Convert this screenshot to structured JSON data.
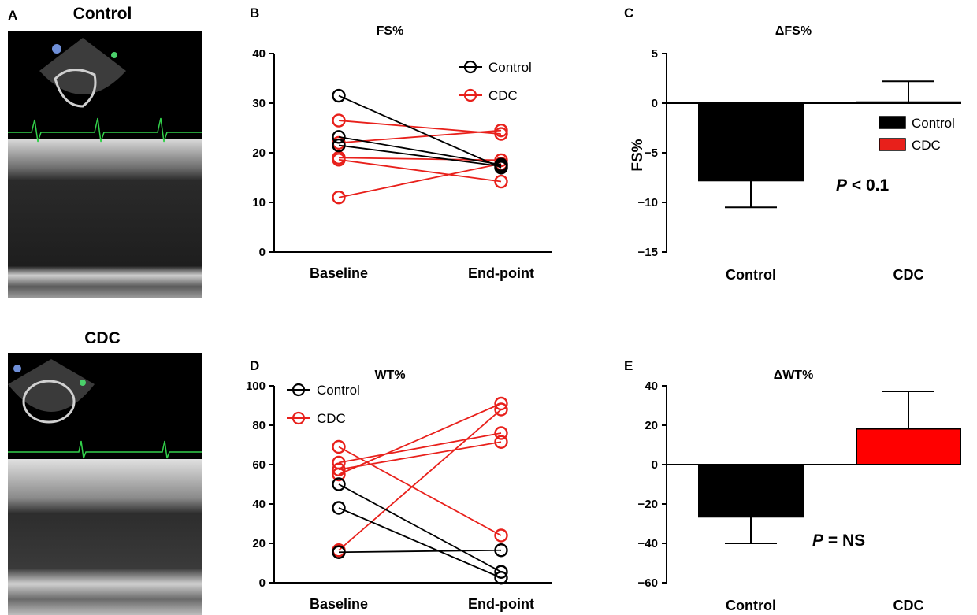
{
  "echo_panels": [
    {
      "letter": "A",
      "title": "Control"
    },
    {
      "letter": "",
      "title": "CDC"
    }
  ],
  "chart_data": [
    {
      "panel": "B",
      "type": "line",
      "title": "FS%",
      "xlabel": "",
      "ylabel": "",
      "categories": [
        "Baseline",
        "End-point"
      ],
      "ylim": [
        0,
        40
      ],
      "yticks": [
        0,
        10,
        20,
        30,
        40
      ],
      "legend": {
        "placement": "top-right",
        "entries": [
          "Control",
          "CDC"
        ]
      },
      "colors": {
        "Control": "#000000",
        "CDC": "#e8201b"
      },
      "series": [
        {
          "group": "Control",
          "values": [
            31.5,
            17
          ]
        },
        {
          "group": "Control",
          "values": [
            23.2,
            17.6
          ]
        },
        {
          "group": "Control",
          "values": [
            21.5,
            17.3
          ]
        },
        {
          "group": "CDC",
          "values": [
            26.5,
            23.8
          ]
        },
        {
          "group": "CDC",
          "values": [
            22,
            24.5
          ]
        },
        {
          "group": "CDC",
          "values": [
            19,
            18.5
          ]
        },
        {
          "group": "CDC",
          "values": [
            18.6,
            14.2
          ]
        },
        {
          "group": "CDC",
          "values": [
            11,
            17.8
          ]
        }
      ]
    },
    {
      "panel": "C",
      "type": "bar",
      "title": "ΔFS%",
      "xlabel": "",
      "ylabel": "FS%",
      "categories": [
        "Control",
        "CDC"
      ],
      "values": [
        -7.8,
        0.1
      ],
      "errors": [
        2.7,
        2.1
      ],
      "ylim": [
        -15,
        5
      ],
      "yticks": [
        5,
        0,
        -5,
        -10,
        -15
      ],
      "colors": [
        "#000000",
        "#ffffff"
      ],
      "legend": {
        "placement": "right",
        "entries": [
          "Control",
          "CDC"
        ],
        "swatches": [
          "#000000",
          "#e8201b"
        ]
      },
      "annotation": {
        "prefix": "P",
        "text": " < 0.1"
      }
    },
    {
      "panel": "D",
      "type": "line",
      "title": "WT%",
      "xlabel": "",
      "ylabel": "",
      "categories": [
        "Baseline",
        "End-point"
      ],
      "ylim": [
        0,
        100
      ],
      "yticks": [
        0,
        20,
        40,
        60,
        80,
        100
      ],
      "legend": {
        "placement": "top-left",
        "entries": [
          "Control",
          "CDC"
        ]
      },
      "colors": {
        "Control": "#000000",
        "CDC": "#e8201b"
      },
      "series": [
        {
          "group": "Control",
          "values": [
            50,
            5.5
          ]
        },
        {
          "group": "Control",
          "values": [
            38,
            2.5
          ]
        },
        {
          "group": "Control",
          "values": [
            15.5,
            16.5
          ]
        },
        {
          "group": "CDC",
          "values": [
            69,
            24
          ]
        },
        {
          "group": "CDC",
          "values": [
            61,
            76
          ]
        },
        {
          "group": "CDC",
          "values": [
            57.5,
            71.5
          ]
        },
        {
          "group": "CDC",
          "values": [
            55,
            91
          ]
        },
        {
          "group": "CDC",
          "values": [
            16.5,
            88
          ]
        }
      ]
    },
    {
      "panel": "E",
      "type": "bar",
      "title": "ΔWT%",
      "xlabel": "",
      "ylabel": "",
      "categories": [
        "Control",
        "CDC"
      ],
      "values": [
        -26.5,
        18.2
      ],
      "errors": [
        13.5,
        19
      ],
      "ylim": [
        -60,
        40
      ],
      "yticks": [
        40,
        20,
        0,
        -20,
        -40,
        -60
      ],
      "colors": [
        "#000000",
        "#ff0000"
      ],
      "annotation": {
        "prefix": "P",
        "text": " = NS"
      }
    }
  ]
}
